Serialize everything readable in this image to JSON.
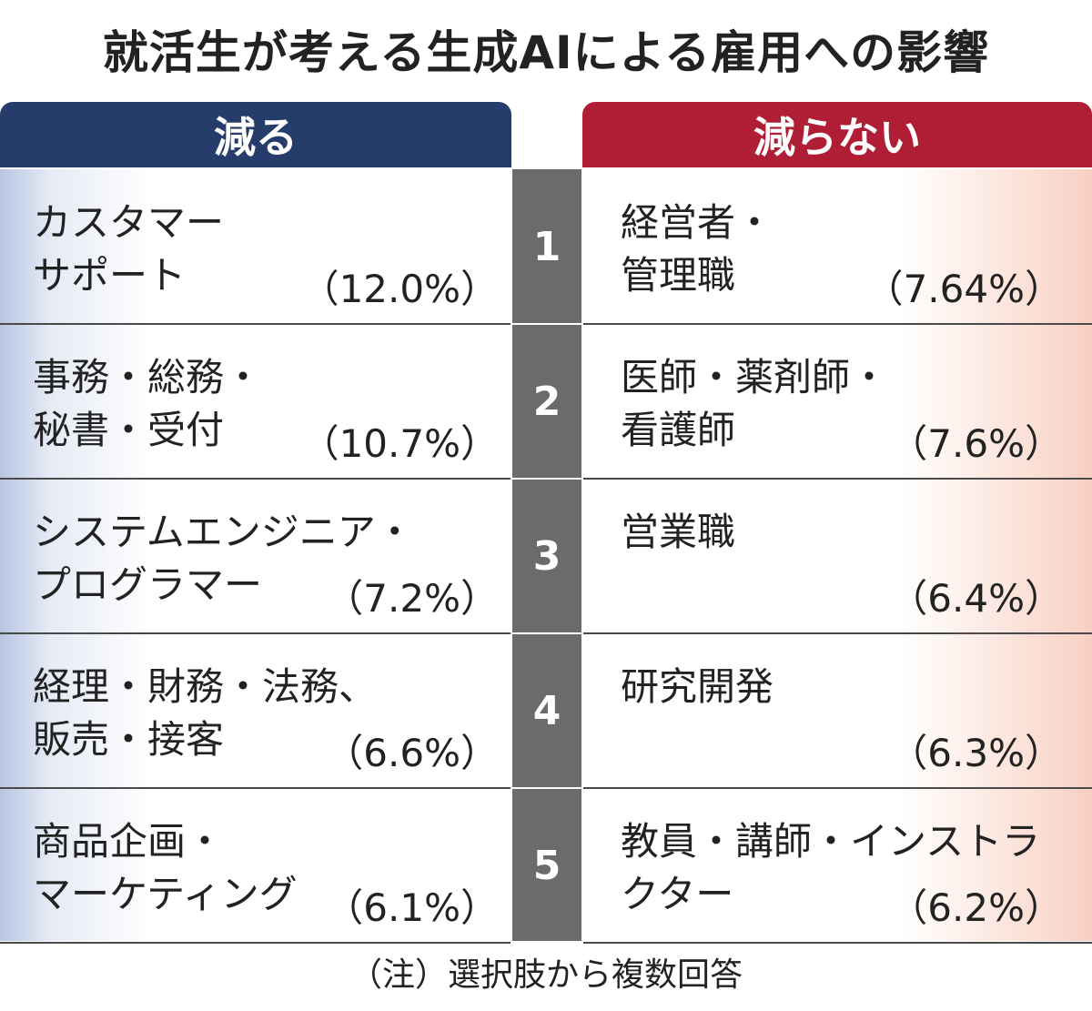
{
  "title": "就活生が考える生成AIによる雇用への影響",
  "headers": {
    "left": "減る",
    "right": "減らない"
  },
  "rows": [
    {
      "rank": "1",
      "left": {
        "line1": "カスタマー",
        "line2": "サポート",
        "pct": "（12.0%）"
      },
      "right": {
        "line1": "経営者・",
        "line2": "管理職",
        "pct": "（7.64%）"
      }
    },
    {
      "rank": "2",
      "left": {
        "line1": "事務・総務・",
        "line2": "秘書・受付",
        "pct": "（10.7%）"
      },
      "right": {
        "line1": "医師・薬剤師・",
        "line2": "看護師",
        "pct": "（7.6%）"
      }
    },
    {
      "rank": "3",
      "left": {
        "line1": "システムエンジニア・",
        "line2": "プログラマー",
        "pct": "（7.2%）"
      },
      "right": {
        "line1": "営業職",
        "line2": "",
        "pct": "（6.4%）"
      }
    },
    {
      "rank": "4",
      "left": {
        "line1": "経理・財務・法務、",
        "line2": "販売・接客",
        "pct": "（6.6%）"
      },
      "right": {
        "line1": "研究開発",
        "line2": "",
        "pct": "（6.3%）"
      }
    },
    {
      "rank": "5",
      "left": {
        "line1": "商品企画・",
        "line2": "マーケティング",
        "pct": "（6.1%）"
      },
      "right": {
        "line1": "教員・講師・インストラ",
        "line2": "クター",
        "pct": "（6.2%）"
      }
    }
  ],
  "note": "（注）選択肢から複数回答",
  "colors": {
    "left_header": "#263d6c",
    "right_header": "#b01e35",
    "rank_column": "#6b6b6b"
  }
}
